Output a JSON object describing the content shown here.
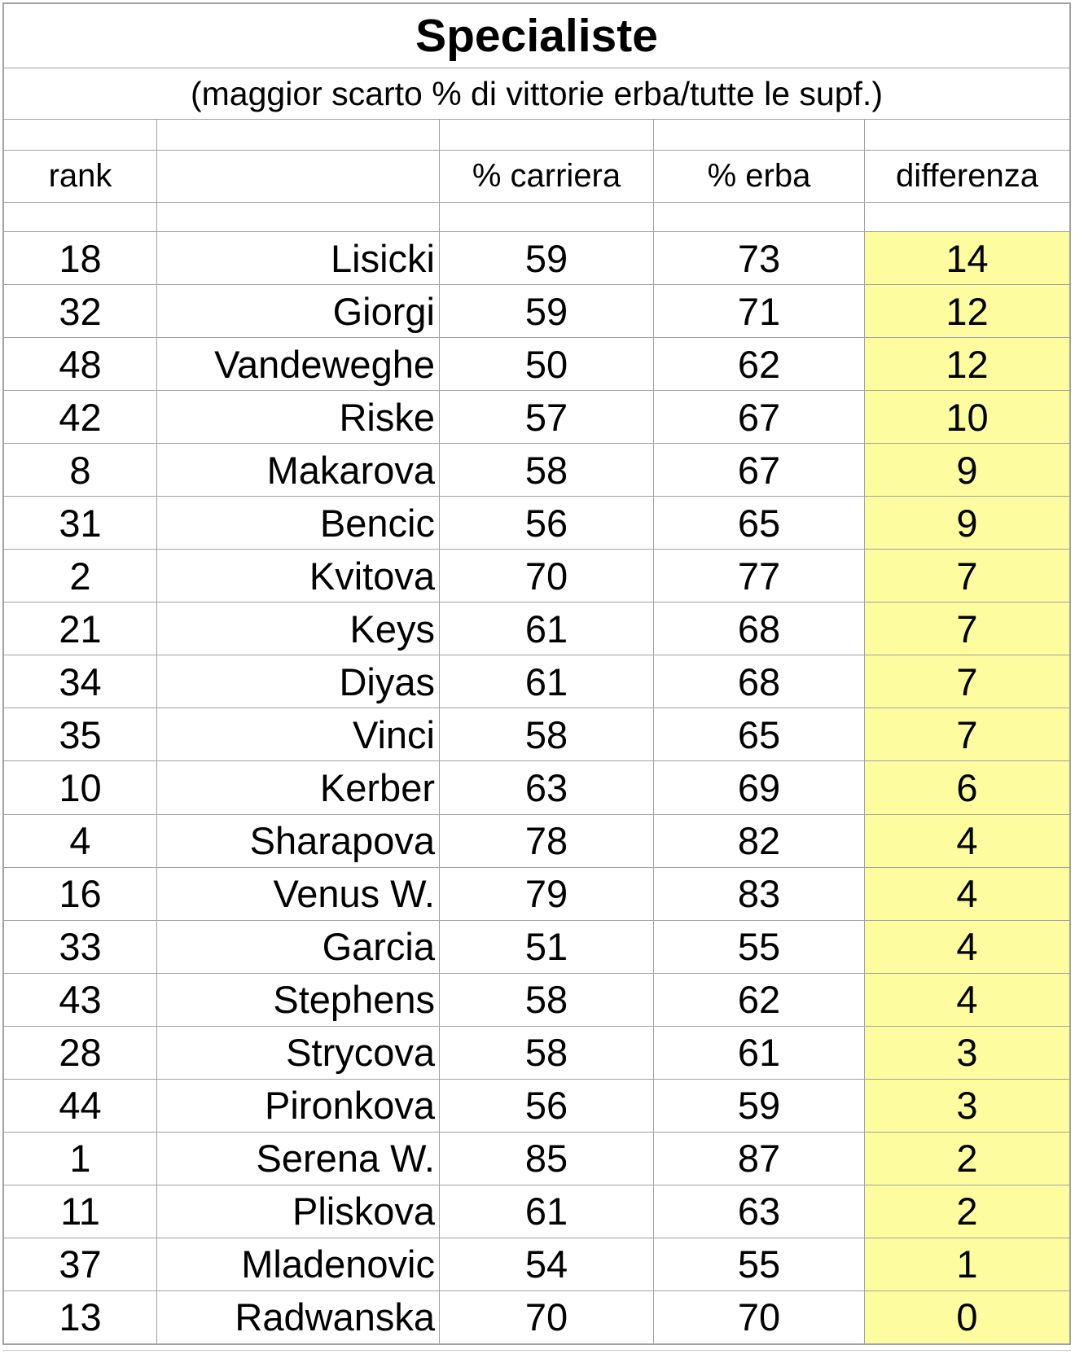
{
  "title": "Specialiste",
  "subtitle": "(maggior scarto % di vittorie erba/tutte le supf.)",
  "header": {
    "rank": "rank",
    "name": "",
    "carriera": "% carriera",
    "erba": "% erba",
    "differenza": "differenza"
  },
  "colors": {
    "highlight": "#fdfda0",
    "gridline": "#a2a2a2",
    "text": "#000000",
    "background": "#ffffff"
  },
  "rows": [
    {
      "rank": "18",
      "name": "Lisicki",
      "carriera": "59",
      "erba": "73",
      "differenza": "14"
    },
    {
      "rank": "32",
      "name": "Giorgi",
      "carriera": "59",
      "erba": "71",
      "differenza": "12"
    },
    {
      "rank": "48",
      "name": "Vandeweghe",
      "carriera": "50",
      "erba": "62",
      "differenza": "12"
    },
    {
      "rank": "42",
      "name": "Riske",
      "carriera": "57",
      "erba": "67",
      "differenza": "10"
    },
    {
      "rank": "8",
      "name": "Makarova",
      "carriera": "58",
      "erba": "67",
      "differenza": "9"
    },
    {
      "rank": "31",
      "name": "Bencic",
      "carriera": "56",
      "erba": "65",
      "differenza": "9"
    },
    {
      "rank": "2",
      "name": "Kvitova",
      "carriera": "70",
      "erba": "77",
      "differenza": "7"
    },
    {
      "rank": "21",
      "name": "Keys",
      "carriera": "61",
      "erba": "68",
      "differenza": "7"
    },
    {
      "rank": "34",
      "name": "Diyas",
      "carriera": "61",
      "erba": "68",
      "differenza": "7"
    },
    {
      "rank": "35",
      "name": "Vinci",
      "carriera": "58",
      "erba": "65",
      "differenza": "7"
    },
    {
      "rank": "10",
      "name": "Kerber",
      "carriera": "63",
      "erba": "69",
      "differenza": "6"
    },
    {
      "rank": "4",
      "name": "Sharapova",
      "carriera": "78",
      "erba": "82",
      "differenza": "4"
    },
    {
      "rank": "16",
      "name": "Venus W.",
      "carriera": "79",
      "erba": "83",
      "differenza": "4"
    },
    {
      "rank": "33",
      "name": "Garcia",
      "carriera": "51",
      "erba": "55",
      "differenza": "4"
    },
    {
      "rank": "43",
      "name": "Stephens",
      "carriera": "58",
      "erba": "62",
      "differenza": "4"
    },
    {
      "rank": "28",
      "name": "Strycova",
      "carriera": "58",
      "erba": "61",
      "differenza": "3"
    },
    {
      "rank": "44",
      "name": "Pironkova",
      "carriera": "56",
      "erba": "59",
      "differenza": "3"
    },
    {
      "rank": "1",
      "name": "Serena W.",
      "carriera": "85",
      "erba": "87",
      "differenza": "2"
    },
    {
      "rank": "11",
      "name": "Pliskova",
      "carriera": "61",
      "erba": "63",
      "differenza": "2"
    },
    {
      "rank": "37",
      "name": "Mladenovic",
      "carriera": "54",
      "erba": "55",
      "differenza": "1"
    },
    {
      "rank": "13",
      "name": "Radwanska",
      "carriera": "70",
      "erba": "70",
      "differenza": "0"
    }
  ],
  "chart_data": {
    "type": "table",
    "title": "Specialiste",
    "subtitle": "(maggior scarto % di vittorie erba/tutte le supf.)",
    "columns": [
      "rank",
      "",
      "% carriera",
      "% erba",
      "differenza"
    ],
    "highlighted_column": "differenza",
    "rows": [
      [
        18,
        "Lisicki",
        59,
        73,
        14
      ],
      [
        32,
        "Giorgi",
        59,
        71,
        12
      ],
      [
        48,
        "Vandeweghe",
        50,
        62,
        12
      ],
      [
        42,
        "Riske",
        57,
        67,
        10
      ],
      [
        8,
        "Makarova",
        58,
        67,
        9
      ],
      [
        31,
        "Bencic",
        56,
        65,
        9
      ],
      [
        2,
        "Kvitova",
        70,
        77,
        7
      ],
      [
        21,
        "Keys",
        61,
        68,
        7
      ],
      [
        34,
        "Diyas",
        61,
        68,
        7
      ],
      [
        35,
        "Vinci",
        58,
        65,
        7
      ],
      [
        10,
        "Kerber",
        63,
        69,
        6
      ],
      [
        4,
        "Sharapova",
        78,
        82,
        4
      ],
      [
        16,
        "Venus W.",
        79,
        83,
        4
      ],
      [
        33,
        "Garcia",
        51,
        55,
        4
      ],
      [
        43,
        "Stephens",
        58,
        62,
        4
      ],
      [
        28,
        "Strycova",
        58,
        61,
        3
      ],
      [
        44,
        "Pironkova",
        56,
        59,
        3
      ],
      [
        1,
        "Serena W.",
        85,
        87,
        2
      ],
      [
        11,
        "Pliskova",
        61,
        63,
        2
      ],
      [
        37,
        "Mladenovic",
        54,
        55,
        1
      ],
      [
        13,
        "Radwanska",
        70,
        70,
        0
      ]
    ]
  }
}
